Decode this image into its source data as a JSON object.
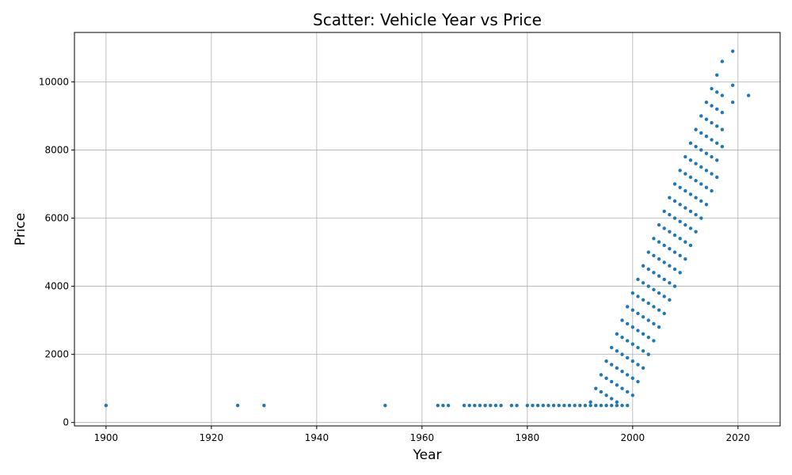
{
  "chart_data": {
    "type": "scatter",
    "title": "Scatter: Vehicle Year vs Price",
    "xlabel": "Year",
    "ylabel": "Price",
    "xlim": [
      1894,
      2028
    ],
    "ylim": [
      -100,
      11450
    ],
    "xticks": [
      1900,
      1920,
      1940,
      1960,
      1980,
      2000,
      2020
    ],
    "yticks": [
      0,
      2000,
      4000,
      6000,
      8000,
      10000
    ],
    "grid": true,
    "color": "#1f77b4",
    "points": [
      [
        1900,
        500
      ],
      [
        1925,
        500
      ],
      [
        1930,
        500
      ],
      [
        1953,
        500
      ],
      [
        1963,
        500
      ],
      [
        1964,
        500
      ],
      [
        1965,
        500
      ],
      [
        1968,
        500
      ],
      [
        1969,
        500
      ],
      [
        1970,
        500
      ],
      [
        1971,
        500
      ],
      [
        1972,
        500
      ],
      [
        1973,
        500
      ],
      [
        1974,
        500
      ],
      [
        1975,
        500
      ],
      [
        1977,
        500
      ],
      [
        1978,
        500
      ],
      [
        1980,
        500
      ],
      [
        1981,
        500
      ],
      [
        1982,
        500
      ],
      [
        1983,
        500
      ],
      [
        1984,
        500
      ],
      [
        1985,
        500
      ],
      [
        1986,
        500
      ],
      [
        1987,
        500
      ],
      [
        1988,
        500
      ],
      [
        1989,
        500
      ],
      [
        1990,
        500
      ],
      [
        1991,
        500
      ],
      [
        1992,
        500
      ],
      [
        1992,
        600
      ],
      [
        1993,
        500
      ],
      [
        1993,
        1000
      ],
      [
        1994,
        500
      ],
      [
        1994,
        900
      ],
      [
        1994,
        1400
      ],
      [
        1995,
        500
      ],
      [
        1995,
        800
      ],
      [
        1995,
        1300
      ],
      [
        1995,
        1800
      ],
      [
        1996,
        500
      ],
      [
        1996,
        700
      ],
      [
        1996,
        1200
      ],
      [
        1996,
        1700
      ],
      [
        1996,
        2200
      ],
      [
        1997,
        500
      ],
      [
        1997,
        600
      ],
      [
        1997,
        1100
      ],
      [
        1997,
        1600
      ],
      [
        1997,
        2100
      ],
      [
        1997,
        2600
      ],
      [
        1998,
        500
      ],
      [
        1998,
        1000
      ],
      [
        1998,
        1500
      ],
      [
        1998,
        2000
      ],
      [
        1998,
        2500
      ],
      [
        1998,
        3000
      ],
      [
        1999,
        500
      ],
      [
        1999,
        900
      ],
      [
        1999,
        1400
      ],
      [
        1999,
        1900
      ],
      [
        1999,
        2400
      ],
      [
        1999,
        2900
      ],
      [
        1999,
        3400
      ],
      [
        2000,
        800
      ],
      [
        2000,
        1300
      ],
      [
        2000,
        1800
      ],
      [
        2000,
        2300
      ],
      [
        2000,
        2800
      ],
      [
        2000,
        3300
      ],
      [
        2000,
        3800
      ],
      [
        2001,
        1200
      ],
      [
        2001,
        1700
      ],
      [
        2001,
        2200
      ],
      [
        2001,
        2700
      ],
      [
        2001,
        3200
      ],
      [
        2001,
        3700
      ],
      [
        2001,
        4200
      ],
      [
        2002,
        1600
      ],
      [
        2002,
        2100
      ],
      [
        2002,
        2600
      ],
      [
        2002,
        3100
      ],
      [
        2002,
        3600
      ],
      [
        2002,
        4100
      ],
      [
        2002,
        4600
      ],
      [
        2003,
        2000
      ],
      [
        2003,
        2500
      ],
      [
        2003,
        3000
      ],
      [
        2003,
        3500
      ],
      [
        2003,
        4000
      ],
      [
        2003,
        4500
      ],
      [
        2003,
        5000
      ],
      [
        2004,
        2400
      ],
      [
        2004,
        2900
      ],
      [
        2004,
        3400
      ],
      [
        2004,
        3900
      ],
      [
        2004,
        4400
      ],
      [
        2004,
        4900
      ],
      [
        2004,
        5400
      ],
      [
        2005,
        2800
      ],
      [
        2005,
        3300
      ],
      [
        2005,
        3800
      ],
      [
        2005,
        4300
      ],
      [
        2005,
        4800
      ],
      [
        2005,
        5300
      ],
      [
        2005,
        5800
      ],
      [
        2006,
        3200
      ],
      [
        2006,
        3700
      ],
      [
        2006,
        4200
      ],
      [
        2006,
        4700
      ],
      [
        2006,
        5200
      ],
      [
        2006,
        5700
      ],
      [
        2006,
        6200
      ],
      [
        2007,
        3600
      ],
      [
        2007,
        4100
      ],
      [
        2007,
        4600
      ],
      [
        2007,
        5100
      ],
      [
        2007,
        5600
      ],
      [
        2007,
        6100
      ],
      [
        2007,
        6600
      ],
      [
        2008,
        4000
      ],
      [
        2008,
        4500
      ],
      [
        2008,
        5000
      ],
      [
        2008,
        5500
      ],
      [
        2008,
        6000
      ],
      [
        2008,
        6500
      ],
      [
        2008,
        7000
      ],
      [
        2009,
        4400
      ],
      [
        2009,
        4900
      ],
      [
        2009,
        5400
      ],
      [
        2009,
        5900
      ],
      [
        2009,
        6400
      ],
      [
        2009,
        6900
      ],
      [
        2009,
        7400
      ],
      [
        2010,
        4800
      ],
      [
        2010,
        5300
      ],
      [
        2010,
        5800
      ],
      [
        2010,
        6300
      ],
      [
        2010,
        6800
      ],
      [
        2010,
        7300
      ],
      [
        2010,
        7800
      ],
      [
        2011,
        5200
      ],
      [
        2011,
        5700
      ],
      [
        2011,
        6200
      ],
      [
        2011,
        6700
      ],
      [
        2011,
        7200
      ],
      [
        2011,
        7700
      ],
      [
        2011,
        8200
      ],
      [
        2012,
        5600
      ],
      [
        2012,
        6100
      ],
      [
        2012,
        6600
      ],
      [
        2012,
        7100
      ],
      [
        2012,
        7600
      ],
      [
        2012,
        8100
      ],
      [
        2012,
        8600
      ],
      [
        2013,
        6000
      ],
      [
        2013,
        6500
      ],
      [
        2013,
        7000
      ],
      [
        2013,
        7500
      ],
      [
        2013,
        8000
      ],
      [
        2013,
        8500
      ],
      [
        2013,
        9000
      ],
      [
        2014,
        6400
      ],
      [
        2014,
        6900
      ],
      [
        2014,
        7400
      ],
      [
        2014,
        7900
      ],
      [
        2014,
        8400
      ],
      [
        2014,
        8900
      ],
      [
        2014,
        9400
      ],
      [
        2015,
        6800
      ],
      [
        2015,
        7300
      ],
      [
        2015,
        7800
      ],
      [
        2015,
        8300
      ],
      [
        2015,
        8800
      ],
      [
        2015,
        9300
      ],
      [
        2015,
        9800
      ],
      [
        2016,
        7200
      ],
      [
        2016,
        7700
      ],
      [
        2016,
        8200
      ],
      [
        2016,
        8700
      ],
      [
        2016,
        9200
      ],
      [
        2016,
        9700
      ],
      [
        2016,
        10200
      ],
      [
        2017,
        8100
      ],
      [
        2017,
        8600
      ],
      [
        2017,
        9100
      ],
      [
        2017,
        9600
      ],
      [
        2017,
        10600
      ],
      [
        2019,
        9400
      ],
      [
        2019,
        9900
      ],
      [
        2019,
        10900
      ],
      [
        2022,
        9600
      ]
    ]
  }
}
